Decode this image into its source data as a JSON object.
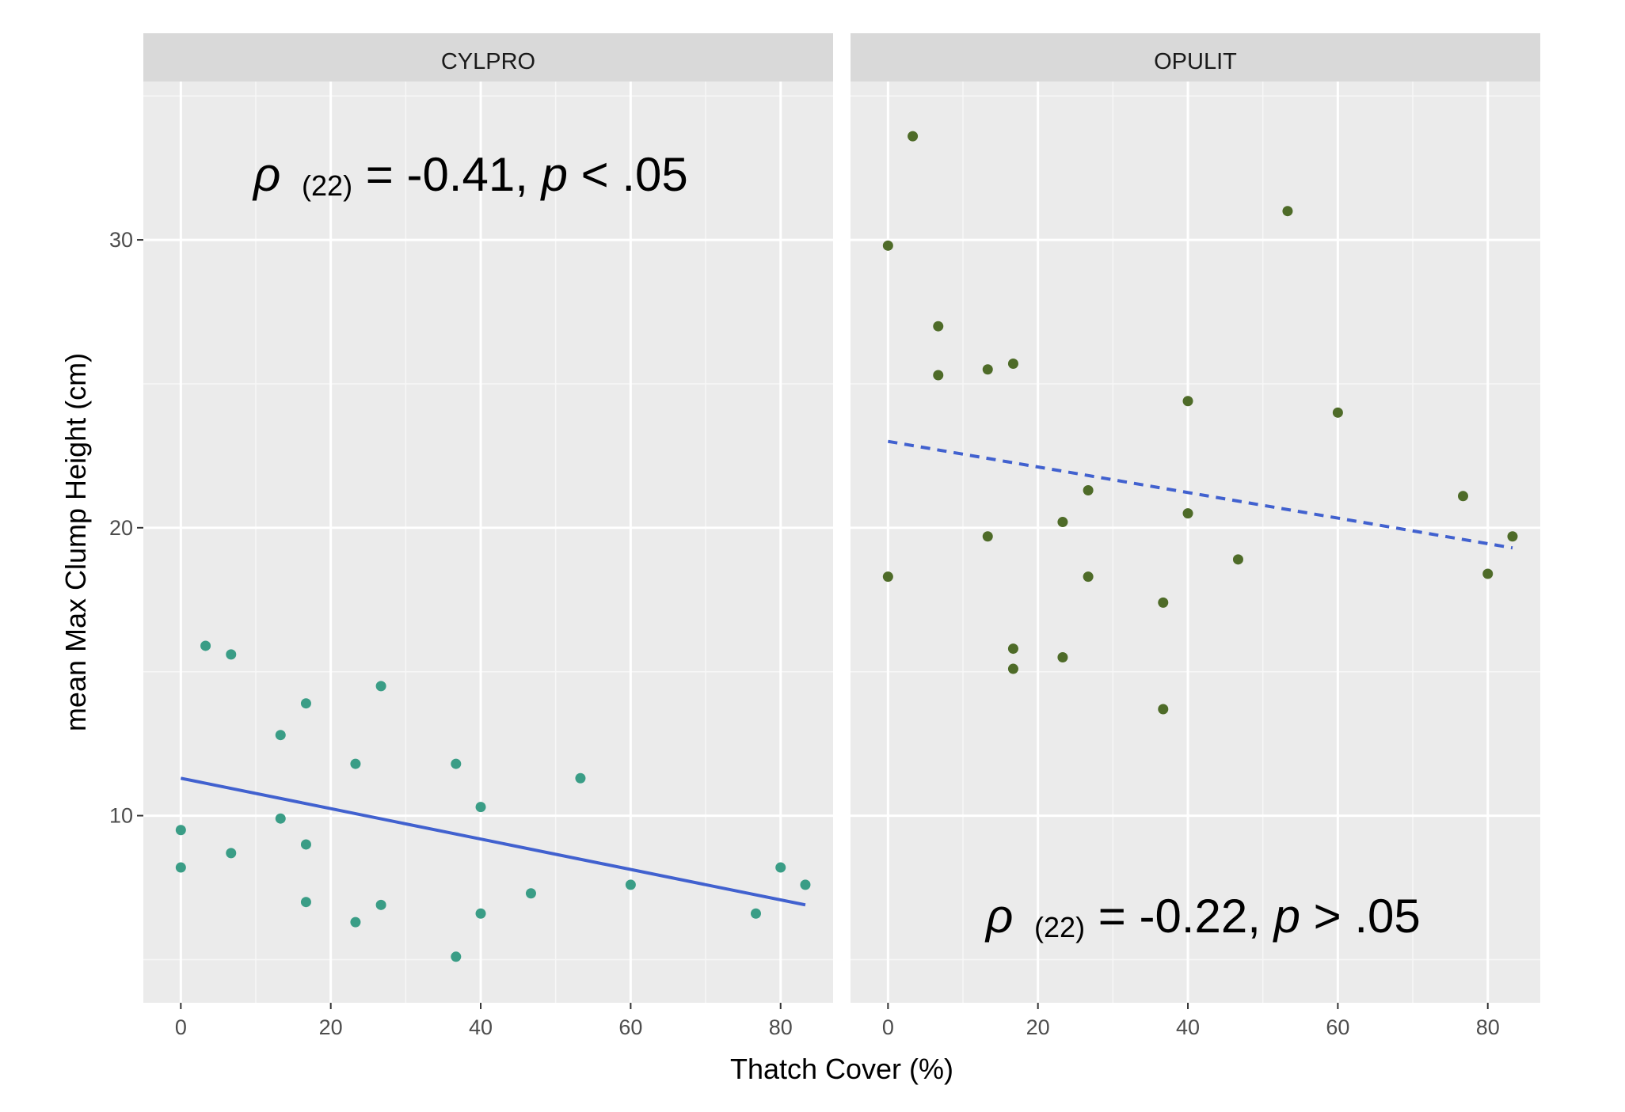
{
  "chart_data": [
    {
      "type": "scatter",
      "facet": "CYLPRO",
      "xlabel": "Thatch Cover (%)",
      "ylabel": "mean Max Clump Height (cm)",
      "xlim": [
        -5,
        87
      ],
      "ylim": [
        3.5,
        35.5
      ],
      "x_ticks": [
        0,
        20,
        40,
        60,
        80
      ],
      "y_ticks": [
        10,
        20,
        30
      ],
      "point_color": "#3a9d86",
      "line_color": "#4161cf",
      "line_style": "solid",
      "trend_line": {
        "x": [
          0,
          83.3
        ],
        "y": [
          11.3,
          6.9
        ]
      },
      "annotation": {
        "rho": "ρ",
        "df": "(22)",
        "value": " = -0.41, ",
        "p": "p",
        "tail": " < .05"
      },
      "points": [
        {
          "x": 0,
          "y": 9.5
        },
        {
          "x": 0,
          "y": 8.2
        },
        {
          "x": 3.3,
          "y": 15.9
        },
        {
          "x": 6.7,
          "y": 15.6
        },
        {
          "x": 6.7,
          "y": 8.7
        },
        {
          "x": 13.3,
          "y": 12.8
        },
        {
          "x": 13.3,
          "y": 9.9
        },
        {
          "x": 16.7,
          "y": 13.9
        },
        {
          "x": 16.7,
          "y": 9.0
        },
        {
          "x": 16.7,
          "y": 7.0
        },
        {
          "x": 23.3,
          "y": 11.8
        },
        {
          "x": 23.3,
          "y": 6.3
        },
        {
          "x": 26.7,
          "y": 14.5
        },
        {
          "x": 26.7,
          "y": 6.9
        },
        {
          "x": 36.7,
          "y": 11.8
        },
        {
          "x": 36.7,
          "y": 5.1
        },
        {
          "x": 40,
          "y": 10.3
        },
        {
          "x": 40,
          "y": 6.6
        },
        {
          "x": 46.7,
          "y": 7.3
        },
        {
          "x": 53.3,
          "y": 11.3
        },
        {
          "x": 60,
          "y": 7.6
        },
        {
          "x": 76.7,
          "y": 6.6
        },
        {
          "x": 80,
          "y": 8.2
        },
        {
          "x": 83.3,
          "y": 7.6
        }
      ]
    },
    {
      "type": "scatter",
      "facet": "OPULIT",
      "xlabel": "Thatch Cover (%)",
      "ylabel": "mean Max Clump Height (cm)",
      "xlim": [
        -5,
        87
      ],
      "ylim": [
        3.5,
        35.5
      ],
      "x_ticks": [
        0,
        20,
        40,
        60,
        80
      ],
      "y_ticks": [
        10,
        20,
        30
      ],
      "point_color": "#4e6b28",
      "line_color": "#4161cf",
      "line_style": "dashed",
      "trend_line": {
        "x": [
          0,
          83.3
        ],
        "y": [
          23.0,
          19.3
        ]
      },
      "annotation": {
        "rho": "ρ",
        "df": "(22)",
        "value": " = -0.22, ",
        "p": "p",
        "tail": " > .05"
      },
      "points": [
        {
          "x": 0,
          "y": 29.8
        },
        {
          "x": 0,
          "y": 18.3
        },
        {
          "x": 3.3,
          "y": 33.6
        },
        {
          "x": 6.7,
          "y": 27.0
        },
        {
          "x": 6.7,
          "y": 25.3
        },
        {
          "x": 13.3,
          "y": 25.5
        },
        {
          "x": 13.3,
          "y": 19.7
        },
        {
          "x": 16.7,
          "y": 25.7
        },
        {
          "x": 16.7,
          "y": 15.8
        },
        {
          "x": 16.7,
          "y": 15.1
        },
        {
          "x": 23.3,
          "y": 20.2
        },
        {
          "x": 23.3,
          "y": 15.5
        },
        {
          "x": 26.7,
          "y": 21.3
        },
        {
          "x": 26.7,
          "y": 18.3
        },
        {
          "x": 36.7,
          "y": 17.4
        },
        {
          "x": 36.7,
          "y": 13.7
        },
        {
          "x": 40,
          "y": 24.4
        },
        {
          "x": 40,
          "y": 20.5
        },
        {
          "x": 46.7,
          "y": 18.9
        },
        {
          "x": 53.3,
          "y": 31.0
        },
        {
          "x": 60,
          "y": 24.0
        },
        {
          "x": 76.7,
          "y": 21.1
        },
        {
          "x": 80,
          "y": 18.4
        },
        {
          "x": 83.3,
          "y": 19.7
        }
      ]
    }
  ]
}
